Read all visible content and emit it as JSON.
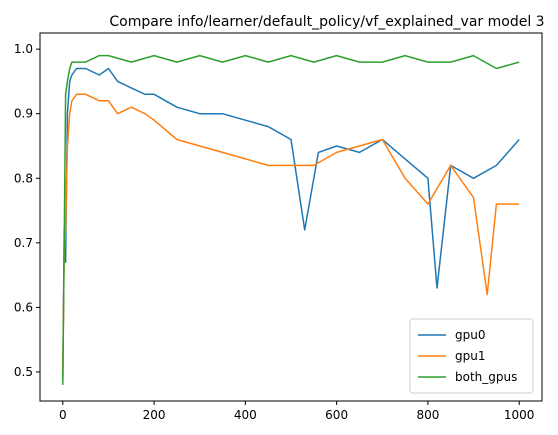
{
  "chart_data": {
    "type": "line",
    "title": "Compare info/learner/default_policy/vf_explained_var model 3",
    "xlabel": "",
    "ylabel": "",
    "xlim": [
      -50,
      1050
    ],
    "ylim": [
      0.455,
      1.025
    ],
    "x_ticks": [
      0,
      200,
      400,
      600,
      800,
      1000
    ],
    "x_tick_labels": [
      "0",
      "200",
      "400",
      "600",
      "800",
      "1000"
    ],
    "y_ticks": [
      0.5,
      0.6,
      0.7,
      0.8,
      0.9,
      1.0
    ],
    "y_tick_labels": [
      "0.5",
      "0.6",
      "0.7",
      "0.8",
      "0.9",
      "1.0"
    ],
    "grid": false,
    "legend_position": "lower-right",
    "series": [
      {
        "name": "gpu0",
        "color": "#1f77b4",
        "x": [
          0,
          3,
          6,
          10,
          15,
          20,
          30,
          50,
          80,
          100,
          120,
          150,
          180,
          200,
          250,
          300,
          350,
          400,
          450,
          500,
          530,
          560,
          600,
          650,
          700,
          750,
          800,
          820,
          850,
          900,
          950,
          1000
        ],
        "values": [
          0.49,
          0.72,
          0.67,
          0.9,
          0.95,
          0.96,
          0.97,
          0.97,
          0.96,
          0.97,
          0.95,
          0.94,
          0.93,
          0.93,
          0.91,
          0.9,
          0.9,
          0.89,
          0.88,
          0.86,
          0.72,
          0.84,
          0.85,
          0.84,
          0.86,
          0.83,
          0.8,
          0.63,
          0.82,
          0.8,
          0.82,
          0.86
        ]
      },
      {
        "name": "gpu1",
        "color": "#ff7f0e",
        "x": [
          0,
          3,
          6,
          10,
          15,
          20,
          30,
          50,
          80,
          100,
          120,
          150,
          180,
          200,
          250,
          300,
          350,
          400,
          450,
          500,
          550,
          600,
          650,
          700,
          750,
          800,
          850,
          900,
          930,
          950,
          1000
        ],
        "values": [
          0.5,
          0.69,
          0.72,
          0.85,
          0.9,
          0.92,
          0.93,
          0.93,
          0.92,
          0.92,
          0.9,
          0.91,
          0.9,
          0.89,
          0.86,
          0.85,
          0.84,
          0.83,
          0.82,
          0.82,
          0.82,
          0.84,
          0.85,
          0.86,
          0.8,
          0.76,
          0.82,
          0.77,
          0.62,
          0.76,
          0.76
        ]
      },
      {
        "name": "both_gpus",
        "color": "#2ca02c",
        "x": [
          0,
          3,
          6,
          10,
          15,
          20,
          30,
          50,
          80,
          100,
          150,
          200,
          250,
          300,
          350,
          400,
          450,
          500,
          550,
          600,
          650,
          700,
          750,
          800,
          850,
          900,
          950,
          1000
        ],
        "values": [
          0.48,
          0.7,
          0.93,
          0.95,
          0.97,
          0.98,
          0.98,
          0.98,
          0.99,
          0.99,
          0.98,
          0.99,
          0.98,
          0.99,
          0.98,
          0.99,
          0.98,
          0.99,
          0.98,
          0.99,
          0.98,
          0.98,
          0.99,
          0.98,
          0.98,
          0.99,
          0.97,
          0.98
        ]
      }
    ]
  }
}
